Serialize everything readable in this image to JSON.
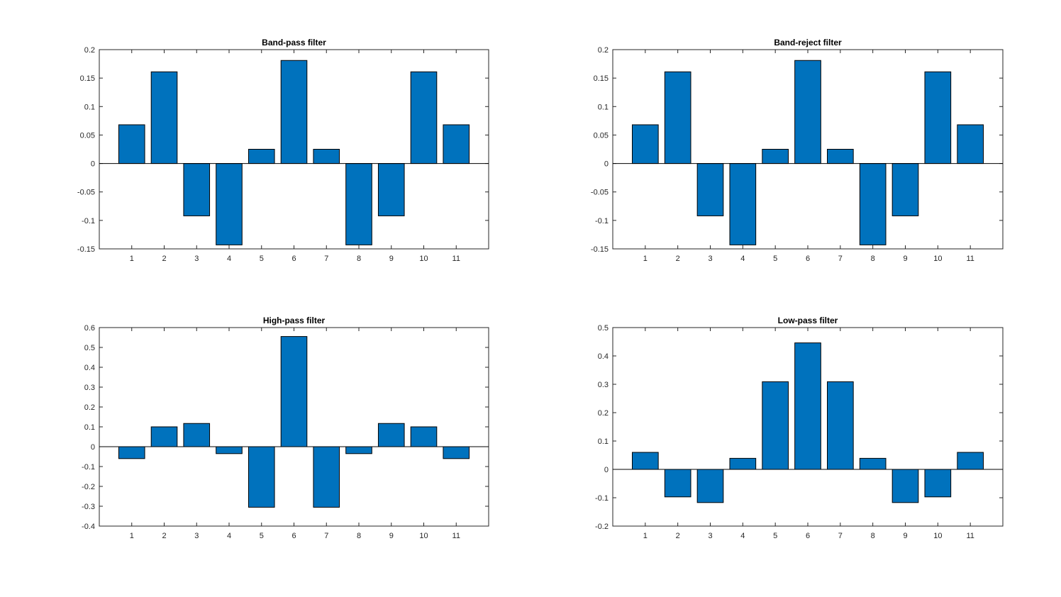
{
  "style": {
    "bar_color": "#0072BD",
    "axes_color": "#262626",
    "background": "#FFFFFF"
  },
  "chart_data": [
    {
      "type": "bar",
      "title": "Band-pass filter",
      "xlabel": "",
      "ylabel": "",
      "categories": [
        "1",
        "2",
        "3",
        "4",
        "5",
        "6",
        "7",
        "8",
        "9",
        "10",
        "11"
      ],
      "values": [
        0.068,
        0.161,
        -0.092,
        -0.143,
        0.025,
        0.181,
        0.025,
        -0.143,
        -0.092,
        0.161,
        0.068
      ],
      "ylim": [
        -0.15,
        0.2
      ],
      "yticks": [
        -0.15,
        -0.1,
        -0.05,
        0,
        0.05,
        0.1,
        0.15,
        0.2
      ],
      "ytick_labels": [
        "-0.15",
        "-0.1",
        "-0.05",
        "0",
        "0.05",
        "0.1",
        "0.15",
        "0.2"
      ],
      "grid": false
    },
    {
      "type": "bar",
      "title": "Band-reject filter",
      "xlabel": "",
      "ylabel": "",
      "categories": [
        "1",
        "2",
        "3",
        "4",
        "5",
        "6",
        "7",
        "8",
        "9",
        "10",
        "11"
      ],
      "values": [
        0.068,
        0.161,
        -0.092,
        -0.143,
        0.025,
        0.181,
        0.025,
        -0.143,
        -0.092,
        0.161,
        0.068
      ],
      "ylim": [
        -0.15,
        0.2
      ],
      "yticks": [
        -0.15,
        -0.1,
        -0.05,
        0,
        0.05,
        0.1,
        0.15,
        0.2
      ],
      "ytick_labels": [
        "-0.15",
        "-0.1",
        "-0.05",
        "0",
        "0.05",
        "0.1",
        "0.15",
        "0.2"
      ],
      "grid": false
    },
    {
      "type": "bar",
      "title": "High-pass filter",
      "xlabel": "",
      "ylabel": "",
      "categories": [
        "1",
        "2",
        "3",
        "4",
        "5",
        "6",
        "7",
        "8",
        "9",
        "10",
        "11"
      ],
      "values": [
        -0.06,
        0.1,
        0.117,
        -0.035,
        -0.305,
        0.555,
        -0.305,
        -0.035,
        0.117,
        0.1,
        -0.06
      ],
      "ylim": [
        -0.4,
        0.6
      ],
      "yticks": [
        -0.4,
        -0.3,
        -0.2,
        -0.1,
        0,
        0.1,
        0.2,
        0.3,
        0.4,
        0.5,
        0.6
      ],
      "ytick_labels": [
        "-0.4",
        "-0.3",
        "-0.2",
        "-0.1",
        "0",
        "0.1",
        "0.2",
        "0.3",
        "0.4",
        "0.5",
        "0.6"
      ],
      "grid": false
    },
    {
      "type": "bar",
      "title": "Low-pass filter",
      "xlabel": "",
      "ylabel": "",
      "categories": [
        "1",
        "2",
        "3",
        "4",
        "5",
        "6",
        "7",
        "8",
        "9",
        "10",
        "11"
      ],
      "values": [
        0.06,
        -0.097,
        -0.117,
        0.039,
        0.309,
        0.446,
        0.309,
        0.039,
        -0.117,
        -0.097,
        0.06
      ],
      "ylim": [
        -0.2,
        0.5
      ],
      "yticks": [
        -0.2,
        -0.1,
        0,
        0.1,
        0.2,
        0.3,
        0.4,
        0.5
      ],
      "ytick_labels": [
        "-0.2",
        "-0.1",
        "0",
        "0.1",
        "0.2",
        "0.3",
        "0.4",
        "0.5"
      ],
      "grid": false
    }
  ]
}
